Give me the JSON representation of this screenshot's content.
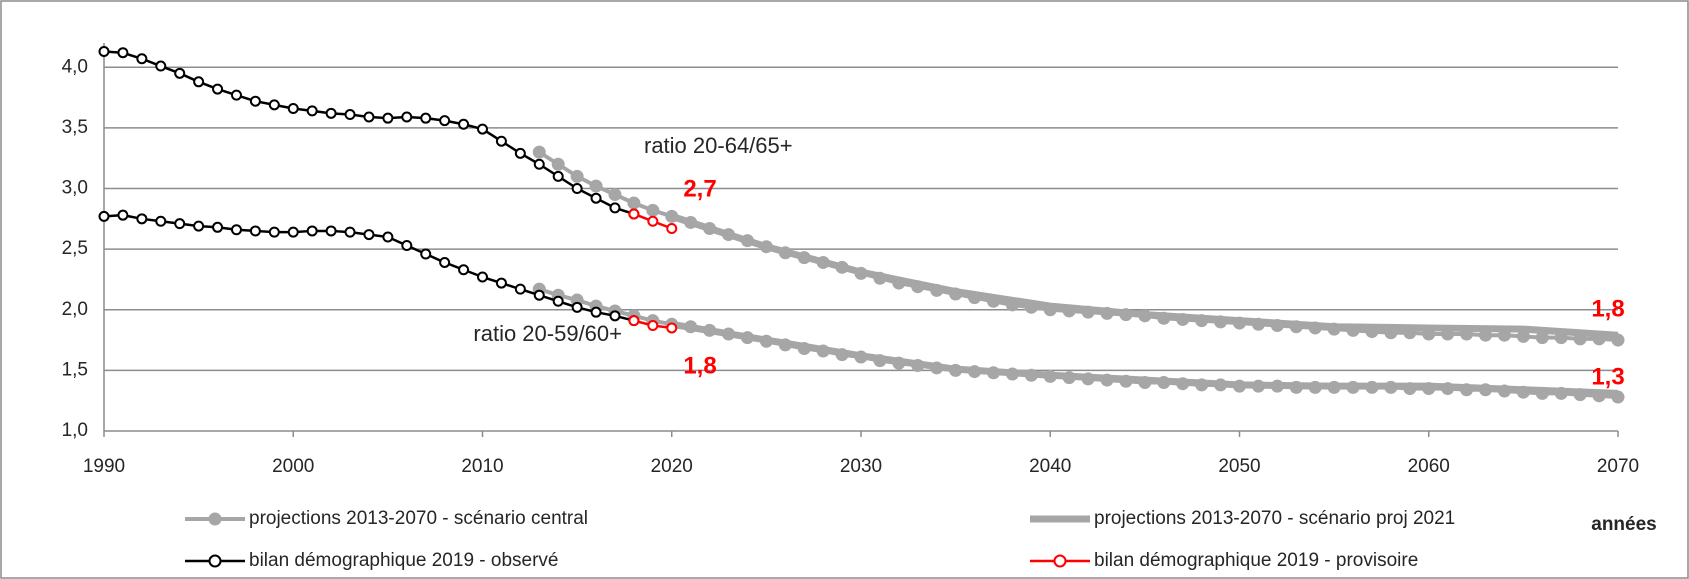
{
  "chart_data": {
    "type": "line",
    "xlim": [
      1990,
      2070
    ],
    "xticks": [
      1990,
      2000,
      2010,
      2020,
      2030,
      2040,
      2050,
      2060,
      2070
    ],
    "ylim": [
      1,
      4.2
    ],
    "yticks": [
      {
        "value": 1,
        "label": "1,0"
      },
      {
        "value": 1.5,
        "label": "1,5"
      },
      {
        "value": 2,
        "label": "2,0"
      },
      {
        "value": 2.5,
        "label": "2,5"
      },
      {
        "value": 3,
        "label": "3,0"
      },
      {
        "value": 3.5,
        "label": "3,5"
      },
      {
        "value": 4,
        "label": "4,0"
      }
    ],
    "grid": true,
    "xlabel": "années",
    "annotations": [
      "ratio 20-64/65+",
      "ratio 20-59/60+"
    ],
    "value_labels": [
      {
        "value": 2.7,
        "label": "2,7"
      },
      {
        "value": 1.8,
        "label": "1,8"
      },
      {
        "value": 1.8,
        "label": "1,8"
      },
      {
        "value": 1.3,
        "label": "1,3"
      }
    ],
    "series": [
      {
        "name": "projections 2013-2070 - scénario central",
        "color": "#a6a6a6",
        "style": "dots",
        "lines": [
          {
            "x": [
              2013,
              2014,
              2015,
              2016,
              2017,
              2018,
              2019,
              2020,
              2021,
              2022,
              2023,
              2024,
              2025,
              2026,
              2027,
              2028,
              2029,
              2030,
              2031,
              2032,
              2033,
              2034,
              2035,
              2036,
              2037,
              2038,
              2039,
              2040,
              2041,
              2042,
              2043,
              2044,
              2045,
              2046,
              2047,
              2048,
              2049,
              2050,
              2051,
              2052,
              2053,
              2054,
              2055,
              2056,
              2057,
              2058,
              2059,
              2060,
              2061,
              2062,
              2063,
              2064,
              2065,
              2066,
              2067,
              2068,
              2069,
              2070
            ],
            "values": [
              3.3,
              3.2,
              3.1,
              3.02,
              2.95,
              2.88,
              2.82,
              2.77,
              2.72,
              2.67,
              2.62,
              2.57,
              2.52,
              2.47,
              2.43,
              2.39,
              2.35,
              2.3,
              2.26,
              2.22,
              2.19,
              2.16,
              2.13,
              2.1,
              2.07,
              2.04,
              2.02,
              2.0,
              1.99,
              1.98,
              1.97,
              1.96,
              1.95,
              1.93,
              1.92,
              1.91,
              1.9,
              1.89,
              1.88,
              1.87,
              1.86,
              1.85,
              1.84,
              1.83,
              1.82,
              1.81,
              1.81,
              1.8,
              1.8,
              1.8,
              1.79,
              1.79,
              1.78,
              1.77,
              1.77,
              1.76,
              1.76,
              1.75
            ]
          },
          {
            "x": [
              2013,
              2014,
              2015,
              2016,
              2017,
              2018,
              2019,
              2020,
              2021,
              2022,
              2023,
              2024,
              2025,
              2026,
              2027,
              2028,
              2029,
              2030,
              2031,
              2032,
              2033,
              2034,
              2035,
              2036,
              2037,
              2038,
              2039,
              2040,
              2041,
              2042,
              2043,
              2044,
              2045,
              2046,
              2047,
              2048,
              2049,
              2050,
              2051,
              2052,
              2053,
              2054,
              2055,
              2056,
              2057,
              2058,
              2059,
              2060,
              2061,
              2062,
              2063,
              2064,
              2065,
              2066,
              2067,
              2068,
              2069,
              2070
            ],
            "values": [
              2.17,
              2.12,
              2.08,
              2.03,
              1.99,
              1.95,
              1.91,
              1.88,
              1.86,
              1.83,
              1.8,
              1.77,
              1.74,
              1.71,
              1.68,
              1.66,
              1.63,
              1.61,
              1.58,
              1.56,
              1.54,
              1.52,
              1.5,
              1.49,
              1.48,
              1.47,
              1.46,
              1.45,
              1.44,
              1.43,
              1.42,
              1.41,
              1.4,
              1.4,
              1.39,
              1.38,
              1.38,
              1.37,
              1.37,
              1.37,
              1.36,
              1.36,
              1.36,
              1.36,
              1.36,
              1.36,
              1.35,
              1.35,
              1.35,
              1.34,
              1.34,
              1.33,
              1.32,
              1.31,
              1.31,
              1.3,
              1.29,
              1.28
            ]
          }
        ]
      },
      {
        "name": "projections 2013-2070 - scénario proj 2021",
        "color": "#a6a6a6",
        "style": "thick",
        "lines": [
          {
            "x": [
              2020,
              2025,
              2030,
              2035,
              2040,
              2045,
              2050,
              2055,
              2060,
              2065,
              2070
            ],
            "values": [
              2.77,
              2.52,
              2.31,
              2.15,
              2.03,
              1.96,
              1.91,
              1.86,
              1.85,
              1.84,
              1.79
            ]
          },
          {
            "x": [
              2020,
              2025,
              2030,
              2035,
              2040,
              2045,
              2050,
              2055,
              2060,
              2065,
              2070
            ],
            "values": [
              1.88,
              1.75,
              1.62,
              1.51,
              1.46,
              1.42,
              1.38,
              1.37,
              1.37,
              1.34,
              1.31
            ]
          }
        ]
      },
      {
        "name": "bilan démographique 2019 - observé",
        "color": "#000000",
        "style": "open",
        "lines": [
          {
            "x": [
              1990,
              1991,
              1992,
              1993,
              1994,
              1995,
              1996,
              1997,
              1998,
              1999,
              2000,
              2001,
              2002,
              2003,
              2004,
              2005,
              2006,
              2007,
              2008,
              2009,
              2010,
              2011,
              2012,
              2013,
              2014,
              2015,
              2016,
              2017,
              2018
            ],
            "values": [
              4.13,
              4.12,
              4.07,
              4.01,
              3.95,
              3.88,
              3.82,
              3.77,
              3.72,
              3.69,
              3.66,
              3.64,
              3.62,
              3.61,
              3.59,
              3.58,
              3.59,
              3.58,
              3.56,
              3.53,
              3.49,
              3.39,
              3.29,
              3.2,
              3.1,
              3.0,
              2.92,
              2.84,
              2.79
            ]
          },
          {
            "x": [
              1990,
              1991,
              1992,
              1993,
              1994,
              1995,
              1996,
              1997,
              1998,
              1999,
              2000,
              2001,
              2002,
              2003,
              2004,
              2005,
              2006,
              2007,
              2008,
              2009,
              2010,
              2011,
              2012,
              2013,
              2014,
              2015,
              2016,
              2017,
              2018
            ],
            "values": [
              2.77,
              2.78,
              2.75,
              2.73,
              2.71,
              2.69,
              2.68,
              2.66,
              2.65,
              2.64,
              2.64,
              2.65,
              2.65,
              2.64,
              2.62,
              2.6,
              2.53,
              2.46,
              2.39,
              2.33,
              2.27,
              2.22,
              2.17,
              2.12,
              2.07,
              2.02,
              1.98,
              1.95,
              1.91
            ]
          }
        ]
      },
      {
        "name": "bilan démographique 2019 - provisoire",
        "color": "#ff0000",
        "style": "open",
        "lines": [
          {
            "x": [
              2018,
              2019,
              2020
            ],
            "values": [
              2.79,
              2.73,
              2.67
            ]
          },
          {
            "x": [
              2018,
              2019,
              2020
            ],
            "values": [
              1.91,
              1.87,
              1.85
            ]
          }
        ]
      }
    ]
  }
}
